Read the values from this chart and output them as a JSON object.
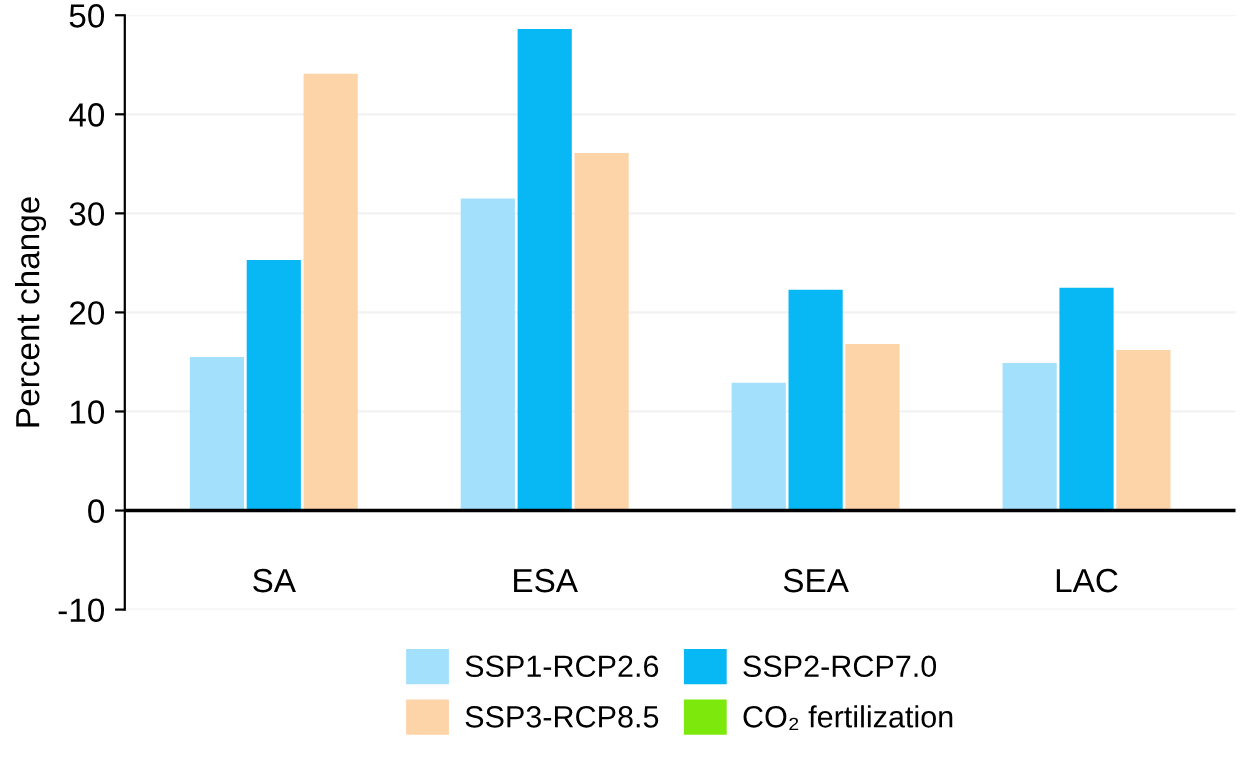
{
  "chart_data": {
    "type": "bar",
    "ylabel": "Percent change",
    "categories": [
      "SA",
      "ESA",
      "SEA",
      "LAC"
    ],
    "series": [
      {
        "name": "SSP1-RCP2.6",
        "color": "#a3e0fb",
        "values": [
          15.5,
          31.5,
          12.9,
          14.9
        ]
      },
      {
        "name": "SSP2-RCP7.0",
        "color": "#08b8f5",
        "values": [
          25.3,
          48.6,
          22.3,
          22.5
        ]
      },
      {
        "name": "SSP3-RCP8.5",
        "color": "#fdd3a8",
        "values": [
          44.1,
          36.1,
          16.8,
          16.2
        ]
      },
      {
        "name": "CO₂ fertilization",
        "color": "#7ce80c",
        "values": [
          null,
          null,
          null,
          null
        ]
      }
    ],
    "ylim": [
      -10,
      50
    ],
    "yticks": [
      -10,
      0,
      10,
      20,
      30,
      40,
      50
    ],
    "grid": "y",
    "legend": "bottom",
    "ref_lines": [
      {
        "axis": "y",
        "value": 0,
        "color": "#000000"
      }
    ]
  }
}
